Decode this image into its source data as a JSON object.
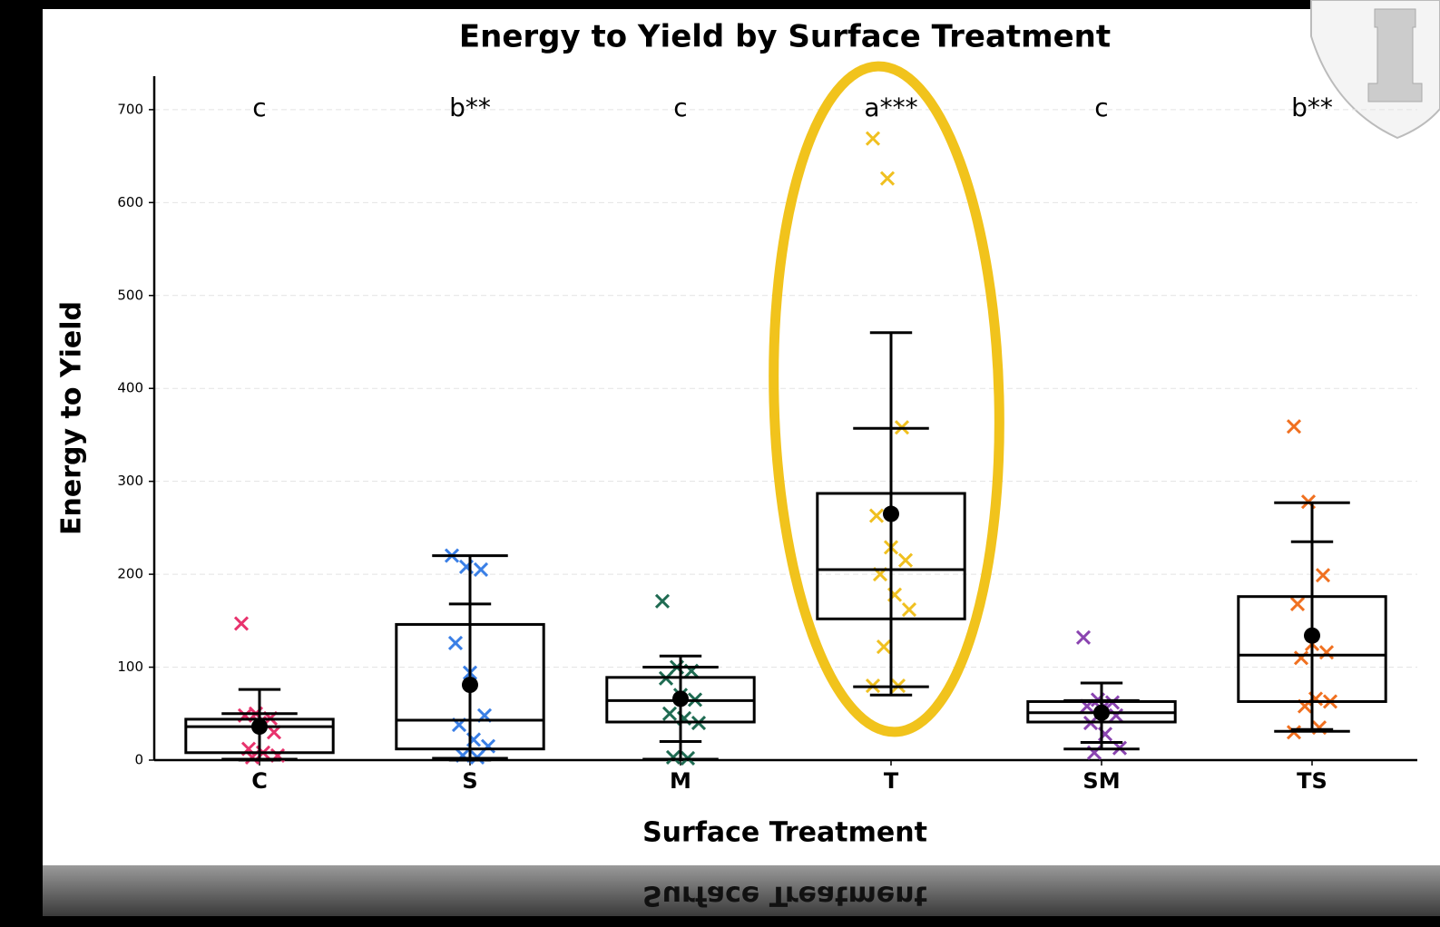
{
  "chart_data": {
    "type": "box",
    "title": "Energy to Yield by Surface Treatment",
    "xlabel": "Surface Treatment",
    "ylabel": "Energy to Yield",
    "categories": [
      "C",
      "S",
      "M",
      "T",
      "SM",
      "TS"
    ],
    "significance": [
      "c",
      "b**",
      "c",
      "a***",
      "c",
      "b**"
    ],
    "ylim": [
      0,
      736
    ],
    "yticks": [
      0,
      100,
      200,
      300,
      400,
      500,
      600,
      700
    ],
    "grid": true,
    "groups": [
      {
        "color": "#e8336d",
        "whisker_low": 1,
        "q1": 8,
        "median": 36,
        "q3": 44,
        "whisker_high": 50,
        "mean": 36,
        "sd": 40,
        "points": [
          147,
          50,
          45,
          48,
          40,
          30,
          12,
          8,
          5,
          3
        ]
      },
      {
        "color": "#3a7fe6",
        "whisker_low": 2,
        "q1": 12,
        "median": 43,
        "q3": 146,
        "whisker_high": 220,
        "mean": 81,
        "sd": 87,
        "points": [
          220,
          208,
          205,
          126,
          94,
          48,
          38,
          22,
          15,
          5,
          3
        ]
      },
      {
        "color": "#1f6b52",
        "whisker_low": 1,
        "q1": 41,
        "median": 64,
        "q3": 89,
        "whisker_high": 100,
        "mean": 66,
        "sd": 46,
        "points": [
          171,
          100,
          96,
          88,
          70,
          65,
          50,
          45,
          40,
          3,
          2
        ]
      },
      {
        "color": "#f0c020",
        "whisker_low": 79,
        "q1": 152,
        "median": 205,
        "q3": 287,
        "whisker_high": 357,
        "mean": 265,
        "sd": 195,
        "points": [
          669,
          626,
          358,
          263,
          229,
          215,
          200,
          178,
          162,
          122,
          80,
          80
        ]
      },
      {
        "color": "#8a44b0",
        "whisker_low": 12,
        "q1": 41,
        "median": 51,
        "q3": 63,
        "whisker_high": 64,
        "mean": 51,
        "sd": 32,
        "points": [
          132,
          65,
          62,
          58,
          55,
          48,
          40,
          28,
          13,
          8
        ]
      },
      {
        "color": "#f07020",
        "whisker_low": 31,
        "q1": 63,
        "median": 113,
        "q3": 176,
        "whisker_high": 277,
        "mean": 134,
        "sd": 101,
        "points": [
          359,
          278,
          199,
          168,
          125,
          116,
          110,
          66,
          63,
          58,
          35,
          30
        ]
      }
    ]
  }
}
